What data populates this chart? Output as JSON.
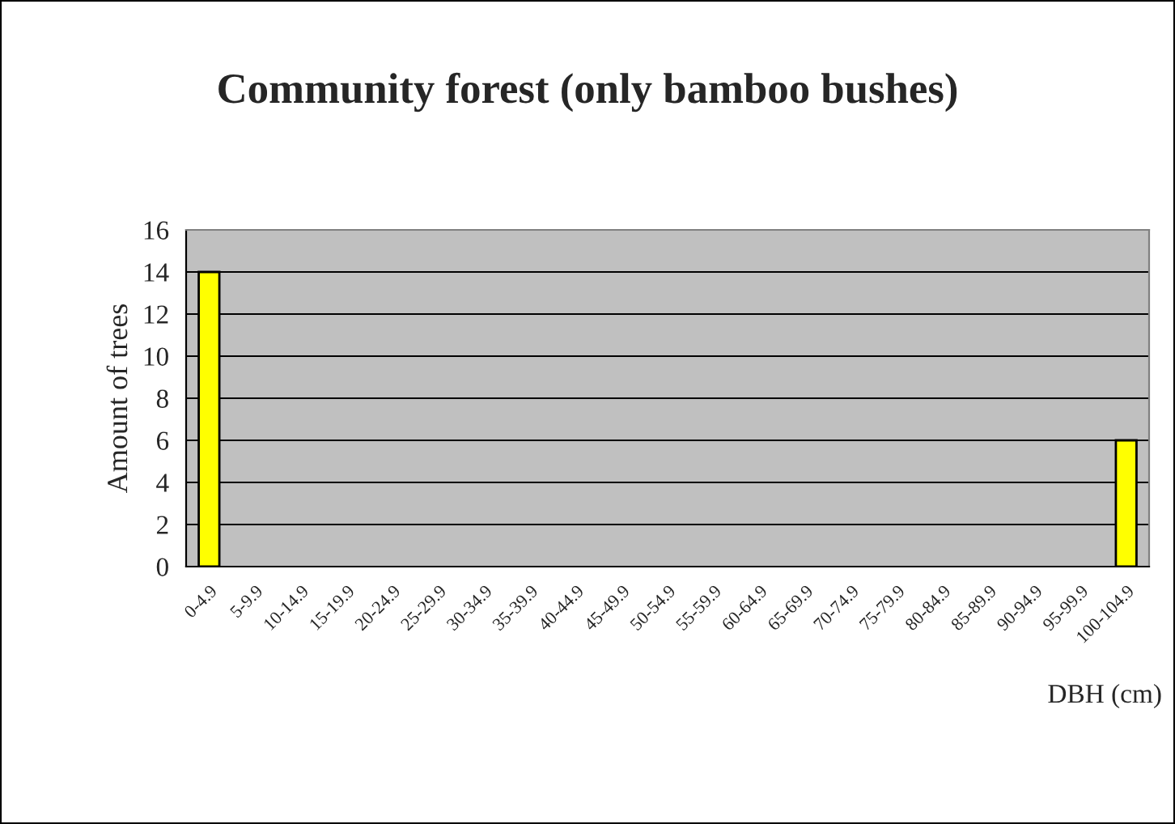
{
  "chart_data": {
    "type": "bar",
    "title": "Community forest (only bamboo bushes)",
    "xlabel": "DBH (cm)",
    "ylabel": "Amount of trees",
    "categories": [
      "0-4.9",
      "5-9.9",
      "10-14.9",
      "15-19.9",
      "20-24.9",
      "25-29.9",
      "30-34.9",
      "35-39.9",
      "40-44.9",
      "45-49.9",
      "50-54.9",
      "55-59.9",
      "60-64.9",
      "65-69.9",
      "70-74.9",
      "75-79.9",
      "80-84.9",
      "85-89.9",
      "90-94.9",
      "95-99.9",
      "100-104.9"
    ],
    "values": [
      14,
      null,
      null,
      null,
      null,
      null,
      null,
      null,
      null,
      null,
      null,
      null,
      null,
      null,
      null,
      null,
      null,
      null,
      null,
      null,
      6
    ],
    "color": "#ffff00",
    "ylim": [
      0,
      16
    ],
    "yticks": [
      0,
      2,
      4,
      6,
      8,
      10,
      12,
      14,
      16
    ],
    "grid": "y",
    "legend": false
  }
}
